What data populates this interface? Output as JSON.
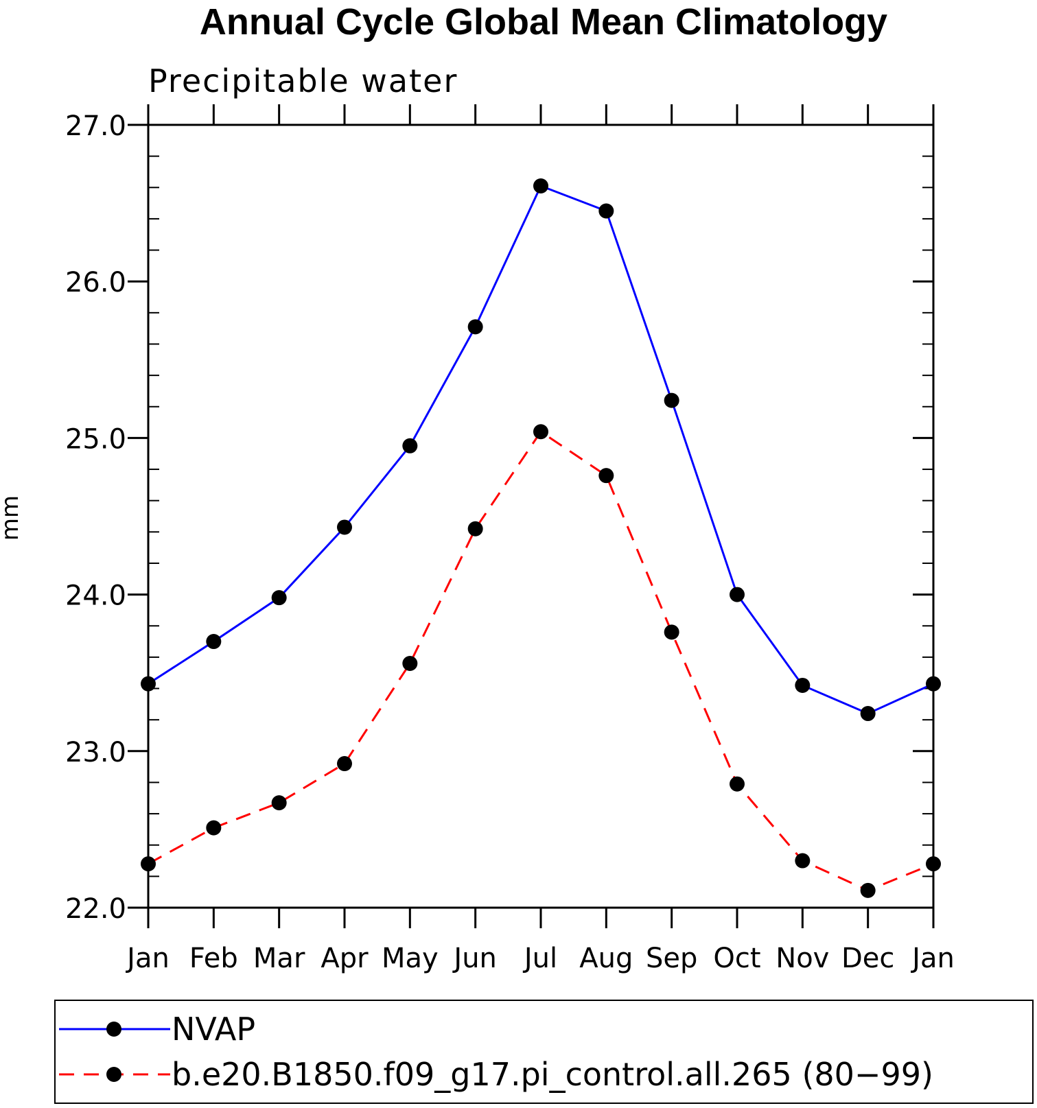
{
  "chart_data": {
    "type": "line",
    "title": "Annual Cycle Global Mean Climatology",
    "subtitle": "Precipitable water",
    "ylabel": "mm",
    "xlabel": "",
    "categories": [
      "Jan",
      "Feb",
      "Mar",
      "Apr",
      "May",
      "Jun",
      "Jul",
      "Aug",
      "Sep",
      "Oct",
      "Nov",
      "Dec",
      "Jan"
    ],
    "ylim": [
      22.0,
      27.0
    ],
    "yticks": [
      "22.0",
      "23.0",
      "24.0",
      "25.0",
      "26.0",
      "27.0"
    ],
    "grid": false,
    "legend_position": "bottom",
    "series": [
      {
        "name": "NVAP",
        "color": "#0000ff",
        "dash": "solid",
        "marker": "filled-circle",
        "values": [
          23.43,
          23.7,
          23.98,
          24.43,
          24.95,
          25.71,
          26.61,
          26.45,
          25.24,
          24.0,
          23.42,
          23.24,
          23.43
        ]
      },
      {
        "name": "b.e20.B1850.f09_g17.pi_control.all.265 (80−99)",
        "color": "#ff0000",
        "dash": "dashed",
        "marker": "filled-circle",
        "values": [
          22.28,
          22.51,
          22.67,
          22.92,
          23.56,
          24.42,
          25.04,
          24.76,
          23.76,
          22.79,
          22.3,
          22.11,
          22.28
        ]
      }
    ]
  }
}
